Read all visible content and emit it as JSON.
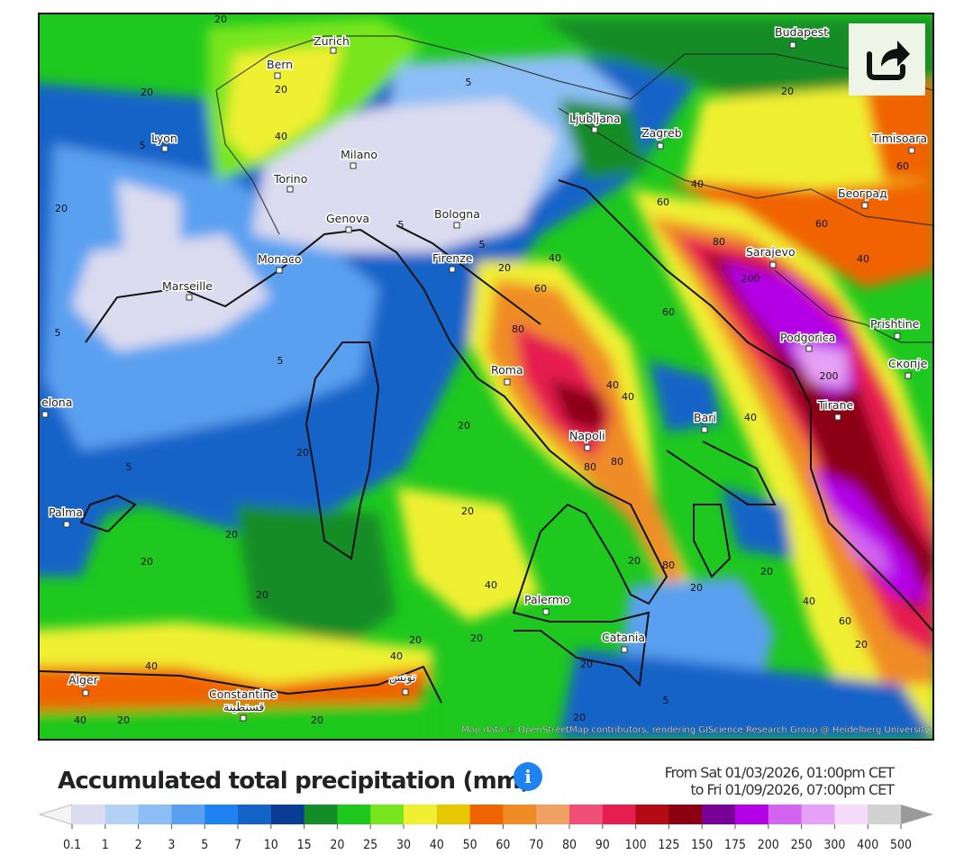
{
  "map": {
    "cities": [
      "Budapest",
      "Zurich",
      "Bern",
      "Lyon",
      "Milano",
      "Torino",
      "Genova",
      "Bologna",
      "Ljubljana",
      "Zagreb",
      "Timisoara",
      "Београд",
      "Sarajevo",
      "Monaco",
      "Firenze",
      "Marseille",
      "Prishtine",
      "Podgorica",
      "Скопје",
      "elona",
      "Roma",
      "Tirane",
      "Bari",
      "Napoli",
      "Palma",
      "Palermo",
      "Catania",
      "Alger",
      "Constantine",
      "قسنطينة",
      "تونس"
    ],
    "contour_labels": [
      20,
      5,
      40,
      20,
      20,
      5,
      20,
      5,
      5,
      20,
      40,
      60,
      80,
      60,
      80,
      40,
      60,
      60,
      40,
      200,
      200,
      20,
      60,
      5,
      5,
      20,
      40,
      40,
      40,
      5,
      20,
      20,
      20,
      20,
      20,
      40,
      20,
      80,
      20,
      40,
      60,
      20,
      40,
      40,
      20,
      20,
      20,
      5,
      20,
      40,
      20,
      20,
      80,
      80,
      20
    ],
    "attribution": "Map data © OpenStreetMap contributors, rendering GIScience Research Group @ Heidelberg University"
  },
  "legend": {
    "title": "Accumulated total precipitation (mm)",
    "period_from": "From Sat 01/03/2026, 01:00pm CET",
    "period_to": "to Fri 01/09/2026, 07:00pm CET",
    "ticks": [
      0.1,
      1,
      2,
      3,
      5,
      7,
      10,
      15,
      20,
      25,
      30,
      40,
      50,
      60,
      70,
      80,
      90,
      100,
      125,
      150,
      175,
      200,
      250,
      300,
      400,
      500
    ],
    "colors": [
      "#dcdcf0",
      "#b4d2f5",
      "#8cbef5",
      "#5aa0f0",
      "#1e82f0",
      "#1464c8",
      "#0a3c96",
      "#148c28",
      "#1ec81e",
      "#78e61e",
      "#f0f032",
      "#e6c800",
      "#f06400",
      "#f08c28",
      "#f0a064",
      "#f05078",
      "#e61e50",
      "#b40a14",
      "#8c0014",
      "#780096",
      "#b400e6",
      "#d264f0",
      "#e6a0f5",
      "#f5dcfa",
      "#d2d2d2"
    ],
    "under_color": "#f4f4f4",
    "over_color": "#9a9a9a"
  }
}
